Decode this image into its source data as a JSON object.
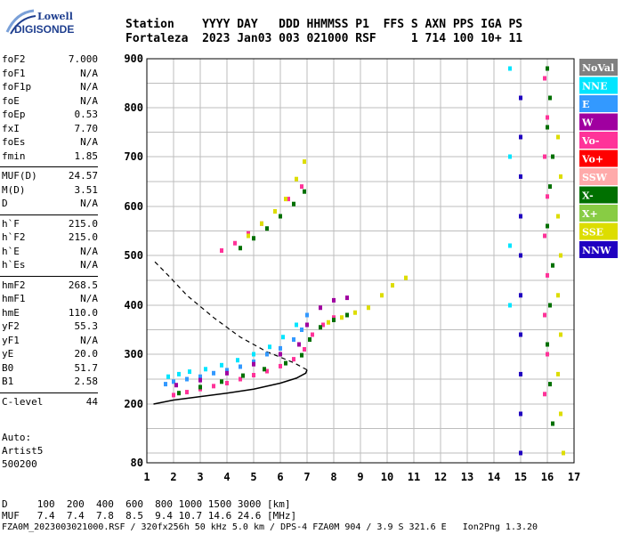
{
  "logo": {
    "line1": "Lowell",
    "line2": "DIGISONDE"
  },
  "header": {
    "row1": "Station    YYYY DAY   DDD HHMMSS P1  FFS S AXN PPS IGA PS",
    "row2": "Fortaleza  2023 Jan03 003 021000 RSF     1 714 100 10+ 11"
  },
  "params": [
    [
      {
        "name": "foF2",
        "value": "7.000"
      },
      {
        "name": "foF1",
        "value": "N/A"
      },
      {
        "name": "foF1p",
        "value": "N/A"
      },
      {
        "name": "foE",
        "value": "N/A"
      },
      {
        "name": "foEp",
        "value": "0.53"
      },
      {
        "name": "fxI",
        "value": "7.70"
      },
      {
        "name": "foEs",
        "value": "N/A"
      },
      {
        "name": "fmin",
        "value": "1.85"
      }
    ],
    [
      {
        "name": "MUF(D)",
        "value": "24.57"
      },
      {
        "name": "M(D)",
        "value": "3.51"
      },
      {
        "name": "D",
        "value": "N/A"
      }
    ],
    [
      {
        "name": "h`F",
        "value": "215.0"
      },
      {
        "name": "h`F2",
        "value": "215.0"
      },
      {
        "name": "h`E",
        "value": "N/A"
      },
      {
        "name": "h`Es",
        "value": "N/A"
      }
    ],
    [
      {
        "name": "hmF2",
        "value": "268.5"
      },
      {
        "name": "hmF1",
        "value": "N/A"
      },
      {
        "name": "hmE",
        "value": "110.0"
      },
      {
        "name": "yF2",
        "value": "55.3"
      },
      {
        "name": "yF1",
        "value": "N/A"
      },
      {
        "name": "yE",
        "value": "20.0"
      },
      {
        "name": "B0",
        "value": "51.7"
      },
      {
        "name": "B1",
        "value": "2.58"
      }
    ],
    [
      {
        "name": "C-level",
        "value": "44"
      }
    ]
  ],
  "auto": {
    "line1": "Auto:",
    "line2": "Artist5",
    "line3": "500200"
  },
  "footer": {
    "d_row": "D     100  200  400  600  800 1000 1500 3000 [km]",
    "muf_row": "MUF   7.4  7.4  7.8  8.5  9.4 10.7 14.6 24.6 [MHz]",
    "file_row": "FZA0M_2023003021000.RSF / 320fx256h 50 kHz 5.0 km / DPS-4 FZA0M 904 / 3.9 S 321.6 E   Ion2Png 1.3.20"
  },
  "chart_data": {
    "type": "scatter",
    "xlim": [
      1,
      17
    ],
    "ylim": [
      80,
      900
    ],
    "x_ticks": [
      "1",
      "2",
      "3",
      "4",
      "5",
      "6",
      "7",
      "8",
      "9",
      "10",
      "11",
      "12",
      "13",
      "14",
      "15",
      "16",
      "17"
    ],
    "y_ticks": [
      "80",
      "200",
      "300",
      "400",
      "500",
      "600",
      "700",
      "800",
      "900"
    ],
    "grid": true,
    "legend_position": "right",
    "legend": [
      {
        "name": "NoVal",
        "color": "#808080"
      },
      {
        "name": "NNE",
        "color": "#00e5ff"
      },
      {
        "name": "E",
        "color": "#3399ff"
      },
      {
        "name": "W",
        "color": "#a000a0"
      },
      {
        "name": "Vo-",
        "color": "#ff3399"
      },
      {
        "name": "Vo+",
        "color": "#ff0000"
      },
      {
        "name": "SSW",
        "color": "#ffaaaa"
      },
      {
        "name": "X-",
        "color": "#007000"
      },
      {
        "name": "X+",
        "color": "#88cc44"
      },
      {
        "name": "SSE",
        "color": "#dddd00"
      },
      {
        "name": "NNW",
        "color": "#2000c0"
      }
    ],
    "traces": [
      {
        "color": "#3399ff",
        "points": [
          [
            1.7,
            240
          ],
          [
            2.0,
            245
          ],
          [
            2.5,
            250
          ],
          [
            3.0,
            255
          ],
          [
            3.5,
            262
          ],
          [
            4.0,
            268
          ],
          [
            4.5,
            275
          ],
          [
            5.0,
            285
          ],
          [
            5.5,
            300
          ],
          [
            6.0,
            312
          ],
          [
            6.5,
            330
          ],
          [
            6.8,
            350
          ],
          [
            7.0,
            380
          ]
        ]
      },
      {
        "color": "#00e5ff",
        "points": [
          [
            1.8,
            255
          ],
          [
            2.2,
            260
          ],
          [
            2.6,
            265
          ],
          [
            3.2,
            270
          ],
          [
            3.8,
            278
          ],
          [
            4.4,
            288
          ],
          [
            5.0,
            300
          ],
          [
            5.6,
            315
          ],
          [
            6.1,
            335
          ],
          [
            6.6,
            360
          ]
        ]
      },
      {
        "color": "#ff3399",
        "points": [
          [
            2.0,
            218
          ],
          [
            2.5,
            224
          ],
          [
            3.0,
            230
          ],
          [
            3.5,
            236
          ],
          [
            4.0,
            242
          ],
          [
            4.5,
            250
          ],
          [
            5.0,
            258
          ],
          [
            5.5,
            266
          ],
          [
            6.0,
            276
          ],
          [
            6.5,
            290
          ],
          [
            6.9,
            310
          ],
          [
            7.2,
            340
          ],
          [
            7.6,
            360
          ],
          [
            8.0,
            375
          ]
        ]
      },
      {
        "color": "#007000",
        "points": [
          [
            2.2,
            222
          ],
          [
            3.0,
            234
          ],
          [
            3.8,
            245
          ],
          [
            4.6,
            257
          ],
          [
            5.4,
            270
          ],
          [
            6.2,
            282
          ],
          [
            6.8,
            298
          ],
          [
            7.1,
            330
          ],
          [
            7.5,
            355
          ],
          [
            8.0,
            370
          ],
          [
            8.5,
            380
          ]
        ]
      },
      {
        "color": "#a000a0",
        "points": [
          [
            2.1,
            238
          ],
          [
            3.0,
            248
          ],
          [
            4.0,
            262
          ],
          [
            5.0,
            280
          ],
          [
            6.0,
            300
          ],
          [
            6.7,
            320
          ],
          [
            7.0,
            360
          ],
          [
            7.5,
            395
          ],
          [
            8.0,
            410
          ],
          [
            8.5,
            415
          ]
        ]
      },
      {
        "color": "#dddd00",
        "points": [
          [
            7.8,
            365
          ],
          [
            8.3,
            375
          ],
          [
            8.8,
            385
          ],
          [
            9.3,
            395
          ],
          [
            9.8,
            420
          ],
          [
            10.2,
            440
          ],
          [
            10.7,
            455
          ]
        ]
      },
      {
        "color": "#ff3399",
        "points": [
          [
            3.8,
            510
          ],
          [
            4.3,
            525
          ],
          [
            4.8,
            545
          ],
          [
            5.3,
            565
          ],
          [
            5.8,
            590
          ],
          [
            6.3,
            615
          ],
          [
            6.8,
            640
          ]
        ]
      },
      {
        "color": "#007000",
        "points": [
          [
            4.5,
            515
          ],
          [
            5.0,
            535
          ],
          [
            5.5,
            555
          ],
          [
            6.0,
            580
          ],
          [
            6.5,
            605
          ],
          [
            6.9,
            630
          ]
        ]
      },
      {
        "color": "#dddd00",
        "points": [
          [
            4.8,
            540
          ],
          [
            5.3,
            565
          ],
          [
            5.8,
            590
          ],
          [
            6.2,
            615
          ],
          [
            6.6,
            655
          ],
          [
            6.9,
            690
          ]
        ]
      },
      {
        "color": "#2000c0",
        "points": [
          [
            15.0,
            820
          ],
          [
            15.0,
            740
          ],
          [
            15.0,
            660
          ],
          [
            15.0,
            580
          ],
          [
            15.0,
            500
          ],
          [
            15.0,
            420
          ],
          [
            15.0,
            340
          ],
          [
            15.0,
            260
          ],
          [
            15.0,
            180
          ],
          [
            15.0,
            100
          ]
        ]
      },
      {
        "color": "#007000",
        "points": [
          [
            16.0,
            880
          ],
          [
            16.1,
            820
          ],
          [
            16.0,
            760
          ],
          [
            16.2,
            700
          ],
          [
            16.1,
            640
          ],
          [
            16.0,
            560
          ],
          [
            16.2,
            480
          ],
          [
            16.1,
            400
          ],
          [
            16.0,
            320
          ],
          [
            16.1,
            240
          ],
          [
            16.2,
            160
          ]
        ]
      },
      {
        "color": "#ff3399",
        "points": [
          [
            15.9,
            860
          ],
          [
            16.0,
            780
          ],
          [
            15.9,
            700
          ],
          [
            16.0,
            620
          ],
          [
            15.9,
            540
          ],
          [
            16.0,
            460
          ],
          [
            15.9,
            380
          ],
          [
            16.0,
            300
          ],
          [
            15.9,
            220
          ]
        ]
      },
      {
        "color": "#dddd00",
        "points": [
          [
            16.4,
            740
          ],
          [
            16.5,
            660
          ],
          [
            16.4,
            580
          ],
          [
            16.5,
            500
          ],
          [
            16.4,
            420
          ],
          [
            16.5,
            340
          ],
          [
            16.4,
            260
          ],
          [
            16.5,
            180
          ],
          [
            16.6,
            100
          ]
        ]
      },
      {
        "color": "#00e5ff",
        "points": [
          [
            14.6,
            880
          ],
          [
            14.6,
            700
          ],
          [
            14.6,
            520
          ],
          [
            14.6,
            400
          ]
        ]
      }
    ],
    "profile_curve": [
      [
        1.25,
        200
      ],
      [
        2.0,
        208
      ],
      [
        3.0,
        215
      ],
      [
        4.0,
        222
      ],
      [
        5.0,
        230
      ],
      [
        6.0,
        242
      ],
      [
        6.6,
        252
      ],
      [
        6.95,
        262
      ],
      [
        7.0,
        268.5
      ]
    ],
    "topside_curve": [
      [
        7.0,
        268.5
      ],
      [
        6.5,
        283
      ],
      [
        5.5,
        305
      ],
      [
        4.5,
        335
      ],
      [
        3.5,
        375
      ],
      [
        2.5,
        420
      ],
      [
        1.8,
        460
      ],
      [
        1.25,
        490
      ]
    ]
  }
}
